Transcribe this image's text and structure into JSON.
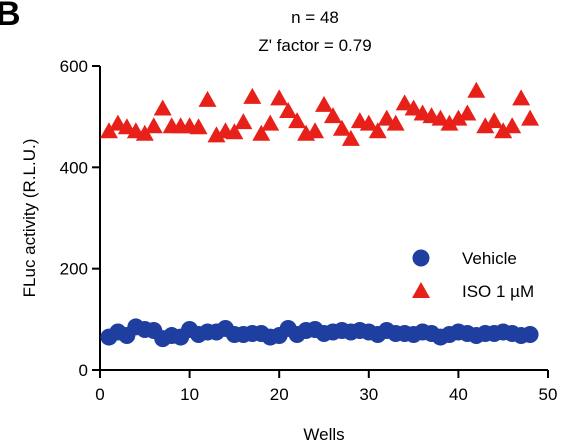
{
  "panel_label": "B",
  "chart_data": {
    "type": "scatter",
    "title": "n = 48",
    "subtitle": "Z' factor = 0.79",
    "xlabel": "Wells",
    "ylabel": "FLuc activity (R.L.U.)",
    "xlim": [
      0,
      50
    ],
    "ylim": [
      0,
      600
    ],
    "xticks": [
      0,
      10,
      20,
      30,
      40,
      50
    ],
    "yticks": [
      0,
      200,
      400,
      600
    ],
    "grid": false,
    "legend_position": "bottom-right",
    "series": [
      {
        "name": "Vehicle",
        "marker": "circle",
        "color": "#1f3fa0",
        "x": [
          1,
          2,
          3,
          4,
          5,
          6,
          7,
          8,
          9,
          10,
          11,
          12,
          13,
          14,
          15,
          16,
          17,
          18,
          19,
          20,
          21,
          22,
          23,
          24,
          25,
          26,
          27,
          28,
          29,
          30,
          31,
          32,
          33,
          34,
          35,
          36,
          37,
          38,
          39,
          40,
          41,
          42,
          43,
          44,
          45,
          46,
          47,
          48
        ],
        "y": [
          65,
          75,
          68,
          85,
          80,
          78,
          62,
          68,
          65,
          80,
          70,
          75,
          75,
          82,
          70,
          70,
          72,
          72,
          65,
          68,
          82,
          70,
          78,
          80,
          72,
          75,
          78,
          75,
          78,
          75,
          70,
          78,
          72,
          72,
          70,
          75,
          72,
          65,
          70,
          75,
          72,
          68,
          72,
          72,
          75,
          72,
          68,
          70
        ]
      },
      {
        "name": "ISO 1 µM",
        "marker": "triangle",
        "color": "#e8201a",
        "x": [
          1,
          2,
          3,
          4,
          5,
          6,
          7,
          8,
          9,
          10,
          11,
          12,
          13,
          14,
          15,
          16,
          17,
          18,
          19,
          20,
          21,
          22,
          23,
          24,
          25,
          26,
          27,
          28,
          29,
          30,
          31,
          32,
          33,
          34,
          35,
          36,
          37,
          38,
          39,
          40,
          41,
          42,
          43,
          44,
          45,
          46,
          47,
          48
        ],
        "y": [
          470,
          485,
          478,
          470,
          465,
          480,
          515,
          480,
          480,
          480,
          478,
          532,
          462,
          470,
          468,
          488,
          538,
          465,
          485,
          535,
          510,
          490,
          465,
          470,
          522,
          500,
          475,
          455,
          490,
          485,
          470,
          495,
          485,
          525,
          515,
          505,
          500,
          495,
          485,
          495,
          505,
          550,
          480,
          490,
          470,
          480,
          535,
          495
        ]
      }
    ]
  }
}
